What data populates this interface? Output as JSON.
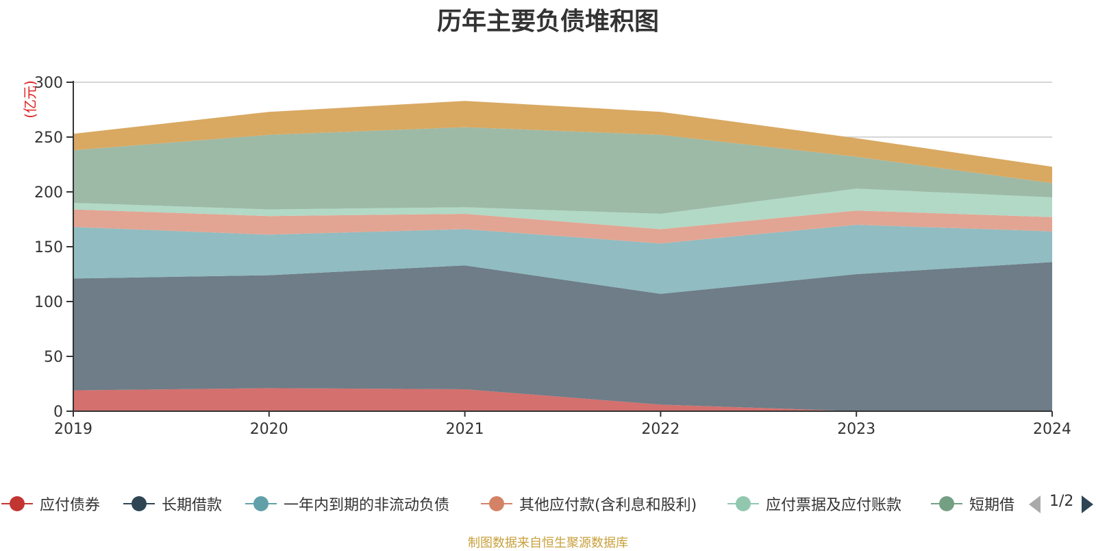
{
  "chart_data": {
    "type": "area",
    "stacked": true,
    "title": "历年主要负债堆积图",
    "ylabel": "(亿元)",
    "xlabel": "",
    "x": [
      "2019",
      "2020",
      "2021",
      "2022",
      "2023",
      "2024"
    ],
    "ylim": [
      0,
      300
    ],
    "yticks": [
      "0",
      "50",
      "100",
      "150",
      "200",
      "250",
      "300"
    ],
    "grid": true,
    "legend_position": "bottom",
    "series": [
      {
        "name": "应付债券",
        "color": "#c23531",
        "fill": "#d4706e",
        "values": [
          19,
          21,
          20,
          6,
          0,
          0
        ]
      },
      {
        "name": "长期借款",
        "color": "#2f4554",
        "fill": "#6e7d87",
        "values": [
          102,
          103,
          113,
          101,
          125,
          136
        ]
      },
      {
        "name": "一年内到期的非流动负债",
        "color": "#61a0a8",
        "fill": "#90bcc2",
        "values": [
          47,
          37,
          33,
          46,
          45,
          28
        ]
      },
      {
        "name": "其他应付款(含利息和股利)",
        "color": "#d48265",
        "fill": "#e2a593",
        "values": [
          16,
          17,
          14,
          13,
          13,
          13
        ]
      },
      {
        "name": "应付票据及应付账款",
        "color": "#91c7ae",
        "fill": "#b1d9c6",
        "values": [
          6,
          6,
          6,
          14,
          20,
          18
        ]
      },
      {
        "name": "短期借款",
        "color": "#749f83",
        "fill": "#9dbaa7",
        "values": [
          48,
          68,
          73,
          72,
          29,
          13
        ]
      },
      {
        "name": "",
        "color": "#ca8622",
        "fill": "#d9a962",
        "values": [
          15,
          21,
          24,
          21,
          17,
          15
        ]
      }
    ]
  },
  "legend": {
    "visible_labels": [
      "应付债券",
      "长期借款",
      "一年内到期的非流动负债",
      "其他应付款(含利息和股利)",
      "应付票据及应付账款",
      "短期借款"
    ],
    "page": "1/2",
    "prev_icon": "triangle-left-icon",
    "next_icon": "triangle-right-icon"
  },
  "source_note": "制图数据来自恒生聚源数据库"
}
